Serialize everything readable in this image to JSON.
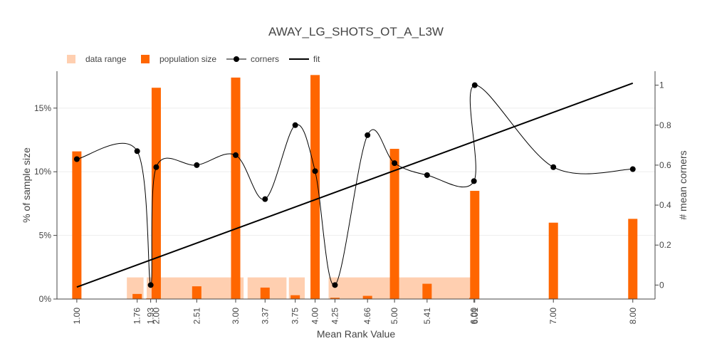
{
  "chart_data": {
    "type": "bar",
    "title": "AWAY_LG_SHOTS_OT_A_L3W",
    "xlabel": "Mean Rank Value",
    "ylabel": "% of sample size",
    "y2label": "# mean corners",
    "ylim": [
      0,
      17.9
    ],
    "y2lim": [
      -0.07,
      1.07
    ],
    "xlim": [
      0.75,
      8.28
    ],
    "yticks": [
      0,
      5,
      10,
      15
    ],
    "ytick_labels": [
      "0%",
      "5%",
      "10%",
      "15%"
    ],
    "y2ticks": [
      0,
      0.2,
      0.4,
      0.6,
      0.8,
      1
    ],
    "y2tick_labels": [
      "0",
      "0.2",
      "0.4",
      "0.6",
      "0.8",
      "1"
    ],
    "xticks": [
      1.0,
      1.76,
      1.93,
      2.0,
      2.51,
      3.0,
      3.37,
      3.75,
      4.0,
      4.25,
      4.66,
      5.0,
      5.41,
      6.0,
      6.01,
      7.0,
      8.0
    ],
    "xtick_labels": [
      "1.00",
      "1.76",
      "1.93",
      "2.00",
      "2.51",
      "3.00",
      "3.37",
      "3.75",
      "4.00",
      "4.25",
      "4.66",
      "5.00",
      "5.41",
      "6.00",
      "6.01",
      "7.00",
      "8.00"
    ],
    "legend": {
      "placement": "top-left",
      "items": [
        {
          "label": "data range",
          "kind": "square",
          "color": "#ffcfb0"
        },
        {
          "label": "population size",
          "kind": "square",
          "color": "#ff6600"
        },
        {
          "label": "corners",
          "kind": "line-marker",
          "color": "#000000"
        },
        {
          "label": "fit",
          "kind": "line",
          "color": "#000000"
        }
      ]
    },
    "data_range": [
      {
        "x0": 1.63,
        "x1": 1.84
      },
      {
        "x0": 1.88,
        "x1": 3.1
      },
      {
        "x0": 3.15,
        "x1": 3.64
      },
      {
        "x0": 3.67,
        "x1": 3.87
      },
      {
        "x0": 4.17,
        "x1": 6.0
      }
    ],
    "data_range_height": 1.7,
    "population_size": {
      "x": [
        1.0,
        1.76,
        1.93,
        2.0,
        2.51,
        3.0,
        3.37,
        3.75,
        4.0,
        4.25,
        4.66,
        5.0,
        5.41,
        6.0,
        6.01,
        7.0,
        8.0
      ],
      "values": [
        11.6,
        0.4,
        0.05,
        16.6,
        1.0,
        17.4,
        0.9,
        0.3,
        17.6,
        0.1,
        0.25,
        11.8,
        1.2,
        0.1,
        8.5,
        6.0,
        6.3
      ],
      "color": "#ff6600"
    },
    "corners": {
      "x": [
        1.0,
        1.76,
        1.93,
        2.0,
        2.51,
        3.0,
        3.37,
        3.75,
        4.0,
        4.25,
        4.66,
        5.0,
        5.41,
        6.0,
        6.01,
        7.0,
        8.0
      ],
      "values": [
        0.63,
        0.67,
        0.0,
        0.59,
        0.6,
        0.65,
        0.43,
        0.8,
        0.57,
        0.0,
        0.75,
        0.61,
        0.55,
        0.52,
        1.0,
        0.59,
        0.58
      ]
    },
    "fit": {
      "x": [
        1.0,
        8.0
      ],
      "values": [
        -0.01,
        1.01
      ]
    }
  }
}
